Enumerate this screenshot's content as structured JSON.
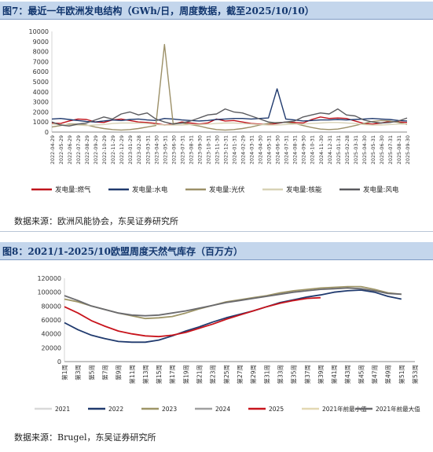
{
  "figure1": {
    "title": "图7：最近一年欧洲发电结构（GWh/日，周度数据，截至2025/10/10）",
    "source": "数据来源：欧洲风能协会，东吴证券研究所"
  },
  "figure2": {
    "title": "图8：2021/1-2025/10欧盟周度天然气库存（百万方）",
    "source": "数据来源：Brugel，东吴证券研究所"
  },
  "chart_data": [
    {
      "type": "line",
      "ylim": [
        0,
        10000
      ],
      "yticks": [
        "0",
        "1000",
        "2000",
        "3000",
        "4000",
        "5000",
        "6000",
        "7000",
        "8000",
        "9000",
        "10000"
      ],
      "x": [
        "2022-04-29",
        "2022-05-29",
        "2022-06-29",
        "2022-07-29",
        "2022-08-29",
        "2022-09-29",
        "2022-10-29",
        "2022-11-29",
        "2022-12-29",
        "2023-01-29",
        "2023-02-28",
        "2023-03-31",
        "2023-04-30",
        "2023-05-31",
        "2023-06-30",
        "2023-07-31",
        "2023-08-31",
        "2023-09-30",
        "2023-10-31",
        "2023-11-30",
        "2023-12-31",
        "2024-01-31",
        "2024-02-29",
        "2024-03-31",
        "2024-04-30",
        "2024-05-31",
        "2024-06-30",
        "2024-07-31",
        "2024-08-31",
        "2024-09-30",
        "2024-10-31",
        "2024-11-30",
        "2024-12-31",
        "2025-01-31",
        "2025-02-28",
        "2025-03-31",
        "2025-04-30",
        "2025-05-31",
        "2025-06-30",
        "2025-07-31",
        "2025-08-31",
        "2025-09-30"
      ],
      "legend_position": "bottom",
      "series": [
        {
          "name": "发电量:燃气",
          "color": "#c0141c",
          "values": [
            900,
            850,
            1100,
            1300,
            1250,
            1000,
            950,
            1200,
            1300,
            1150,
            1000,
            950,
            850,
            700,
            800,
            1000,
            900,
            800,
            900,
            1300,
            1100,
            1150,
            1000,
            850,
            800,
            750,
            850,
            1000,
            950,
            900,
            1250,
            1500,
            1350,
            1400,
            1350,
            1100,
            850,
            800,
            900,
            1050,
            1000,
            950
          ]
        },
        {
          "name": "发电量:水电",
          "color": "#203a6e",
          "values": [
            1300,
            1350,
            1250,
            1150,
            1050,
            1000,
            1100,
            1200,
            1150,
            1250,
            1300,
            1200,
            1150,
            1350,
            1300,
            1200,
            1150,
            1100,
            1150,
            1250,
            1300,
            1350,
            1350,
            1300,
            1350,
            1400,
            4300,
            1300,
            1200,
            1100,
            1150,
            1200,
            1200,
            1250,
            1200,
            1250,
            1300,
            1350,
            1300,
            1250,
            1150,
            1100
          ]
        },
        {
          "name": "发电量:光伏",
          "color": "#9c9068",
          "values": [
            500,
            650,
            800,
            800,
            700,
            500,
            350,
            250,
            200,
            250,
            350,
            500,
            650,
            8700,
            850,
            900,
            750,
            600,
            400,
            250,
            200,
            250,
            350,
            500,
            700,
            850,
            950,
            950,
            850,
            650,
            450,
            300,
            250,
            300,
            450,
            650,
            850,
            1050,
            1150,
            1100,
            950,
            750
          ]
        },
        {
          "name": "发电量:核能",
          "color": "#d8d2b6",
          "values": [
            800,
            750,
            700,
            700,
            650,
            700,
            750,
            850,
            900,
            900,
            900,
            850,
            750,
            700,
            700,
            700,
            750,
            750,
            800,
            850,
            900,
            900,
            850,
            800,
            750,
            700,
            700,
            750,
            800,
            800,
            850,
            900,
            950,
            950,
            900,
            850,
            750,
            700,
            700,
            750,
            800,
            800
          ]
        },
        {
          "name": "发电量:风电",
          "color": "#5a5a5e",
          "values": [
            1000,
            700,
            600,
            800,
            900,
            1200,
            1500,
            1300,
            1800,
            2000,
            1700,
            1900,
            1300,
            1000,
            800,
            900,
            1100,
            1400,
            1700,
            1800,
            2300,
            2000,
            1900,
            1600,
            1300,
            1000,
            900,
            1000,
            1100,
            1500,
            1700,
            1900,
            1800,
            2300,
            1700,
            1600,
            1200,
            1000,
            900,
            950,
            1100,
            1400
          ]
        }
      ]
    },
    {
      "type": "line",
      "ylim": [
        0,
        120000
      ],
      "yticks": [
        "0",
        "20000",
        "40000",
        "60000",
        "80000",
        "100000",
        "120000"
      ],
      "x": [
        "第1周",
        "第3周",
        "第5周",
        "第7周",
        "第9周",
        "第11周",
        "第13周",
        "第15周",
        "第17周",
        "第19周",
        "第21周",
        "第23周",
        "第25周",
        "第27周",
        "第29周",
        "第31周",
        "第33周",
        "第35周",
        "第37周",
        "第39周",
        "第41周",
        "第43周",
        "第45周",
        "第47周",
        "第49周",
        "第51周",
        "第53周"
      ],
      "legend_position": "bottom",
      "series": [
        {
          "name": "2021",
          "color": "#d9d9d9",
          "values": [
            null,
            null,
            null,
            null,
            null,
            null,
            null,
            null,
            null,
            null,
            null,
            null,
            null,
            null,
            null,
            null,
            null,
            null,
            null,
            null,
            null,
            null,
            null,
            null,
            null,
            null,
            null
          ]
        },
        {
          "name": "2022",
          "color": "#203a6e",
          "values": [
            56000,
            46000,
            38000,
            33000,
            29000,
            28000,
            28000,
            31000,
            37000,
            44000,
            50000,
            57000,
            63000,
            68000,
            73000,
            79000,
            85000,
            89000,
            93000,
            96000,
            100000,
            102000,
            103000,
            100000,
            94000,
            90000,
            null
          ]
        },
        {
          "name": "2023",
          "color": "#9e9567",
          "values": [
            90000,
            86000,
            80000,
            75000,
            70000,
            66000,
            62000,
            63000,
            65000,
            70000,
            76000,
            81000,
            86000,
            89000,
            92000,
            95000,
            99000,
            102000,
            104000,
            106000,
            107000,
            108000,
            108000,
            104000,
            99000,
            97000,
            null
          ]
        },
        {
          "name": "2024",
          "color": "#a0a0a0",
          "values": [
            null,
            null,
            null,
            null,
            null,
            null,
            null,
            null,
            null,
            null,
            null,
            null,
            null,
            null,
            null,
            null,
            null,
            null,
            null,
            null,
            null,
            null,
            null,
            null,
            null,
            null,
            null
          ]
        },
        {
          "name": "2025",
          "color": "#c8141c",
          "values": [
            79000,
            70000,
            59000,
            51000,
            44000,
            40000,
            37000,
            36000,
            38000,
            42000,
            48000,
            54000,
            61000,
            67000,
            73000,
            79000,
            84000,
            88000,
            91000,
            92000,
            null,
            null,
            null,
            null,
            null,
            null,
            null
          ]
        },
        {
          "name": "2021年前最小值",
          "color": "#e3d8b2",
          "values": [
            null,
            null,
            null,
            null,
            null,
            null,
            null,
            null,
            null,
            null,
            null,
            null,
            null,
            null,
            null,
            null,
            null,
            null,
            null,
            null,
            null,
            null,
            null,
            null,
            null,
            null,
            null
          ]
        },
        {
          "name": "2021年前最大值",
          "color": "#6a6a6e",
          "values": [
            95000,
            88000,
            80000,
            75000,
            70000,
            67000,
            66000,
            67000,
            70000,
            73000,
            77000,
            81000,
            85000,
            88000,
            91000,
            94000,
            97000,
            100000,
            102000,
            104000,
            105000,
            106000,
            105000,
            102000,
            98000,
            97000,
            null
          ]
        }
      ]
    }
  ]
}
